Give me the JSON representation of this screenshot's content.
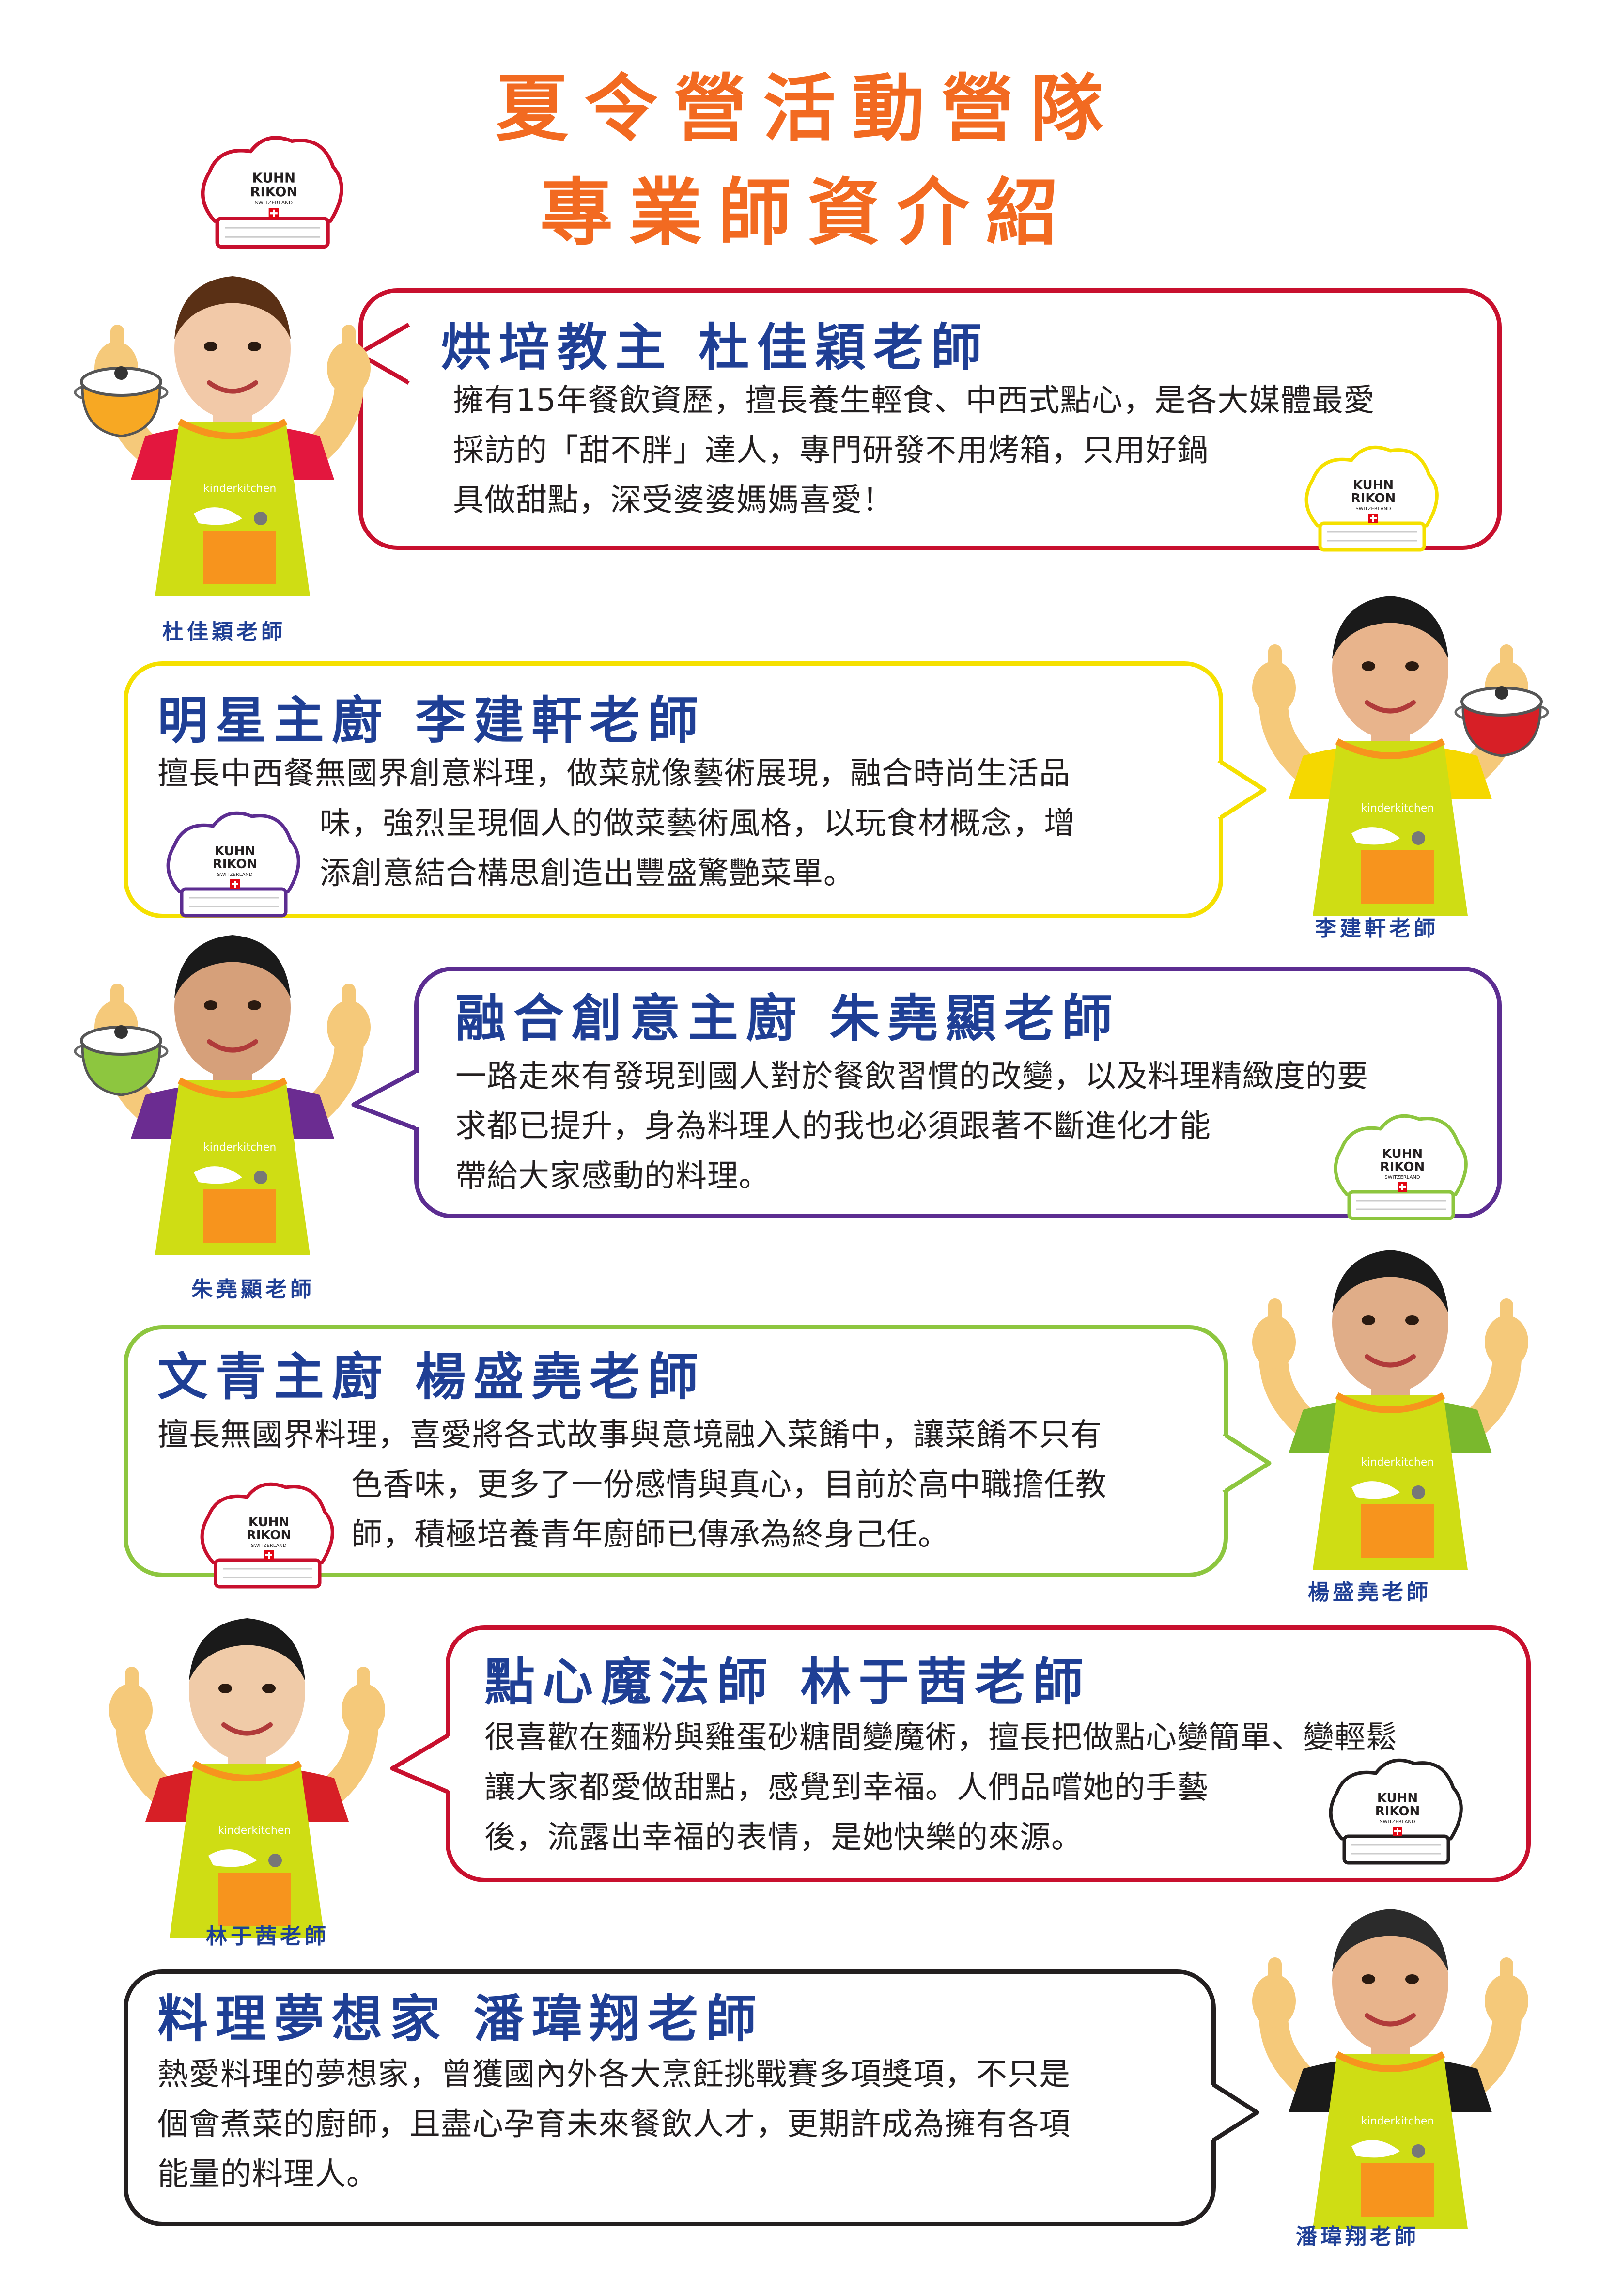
{
  "header": {
    "title_line1": "夏令營活動營隊",
    "title_line2": "專業師資介紹"
  },
  "hat_logo": {
    "brand_line1": "KUHN",
    "brand_line2": "RIKON",
    "brand_line3": "SWITZERLAND"
  },
  "apron_logo": "kinderkitchen",
  "colors": {
    "title": "#f26a21",
    "heading": "#1f3f95",
    "apron": "#cfdd14",
    "pocket": "#f7941d",
    "bubble_1": "#c8102e",
    "bubble_2": "#f5e000",
    "bubble_3": "#5c2d91",
    "bubble_4": "#8dc63f",
    "bubble_5": "#c8102e",
    "bubble_6": "#231f20"
  },
  "chefs": [
    {
      "heading": "烘培教主 杜佳穎老師",
      "lines": [
        "擁有15年餐飲資歷，擅長養生輕食、中西式點心，是各大媒體最愛",
        "採訪的「甜不胖」達人，專門研發不用烤箱，只用好鍋",
        "具做甜點，深受婆婆媽媽喜愛！"
      ],
      "caption": "杜佳穎老師"
    },
    {
      "heading": "明星主廚 李建軒老師",
      "lines": [
        "擅長中西餐無國界創意料理，做菜就像藝術展現，融合時尚生活品",
        "味，強烈呈現個人的做菜藝術風格，以玩食材概念，增",
        "添創意結合構思創造出豐盛驚艷菜單。"
      ],
      "caption": "李建軒老師"
    },
    {
      "heading": "融合創意主廚 朱堯顯老師",
      "lines": [
        "一路走來有發現到國人對於餐飲習慣的改變，以及料理精緻度的要",
        "求都已提升，身為料理人的我也必須跟著不斷進化才能",
        "帶給大家感動的料理。"
      ],
      "caption": "朱堯顯老師"
    },
    {
      "heading": "文青主廚 楊盛堯老師",
      "lines": [
        "擅長無國界料理，喜愛將各式故事與意境融入菜餚中，讓菜餚不只有",
        "色香味，更多了一份感情與真心，目前於高中職擔任教",
        "師，積極培養青年廚師已傳承為終身己任。"
      ],
      "caption": "楊盛堯老師"
    },
    {
      "heading": "點心魔法師 林于茜老師",
      "lines": [
        "很喜歡在麵粉與雞蛋砂糖間變魔術，擅長把做點心變簡單、變輕鬆",
        "讓大家都愛做甜點，感覺到幸福。人們品嚐她的手藝",
        "後，流露出幸福的表情，是她快樂的來源。"
      ],
      "caption": "林于茜老師"
    },
    {
      "heading": "料理夢想家 潘瑋翔老師",
      "lines": [
        "熱愛料理的夢想家，曾獲國內外各大烹飪挑戰賽多項獎項，不只是",
        "個會煮菜的廚師，且盡心孕育未來餐飲人才，更期許成為擁有各項",
        "能量的料理人。"
      ],
      "caption": "潘瑋翔老師"
    }
  ]
}
